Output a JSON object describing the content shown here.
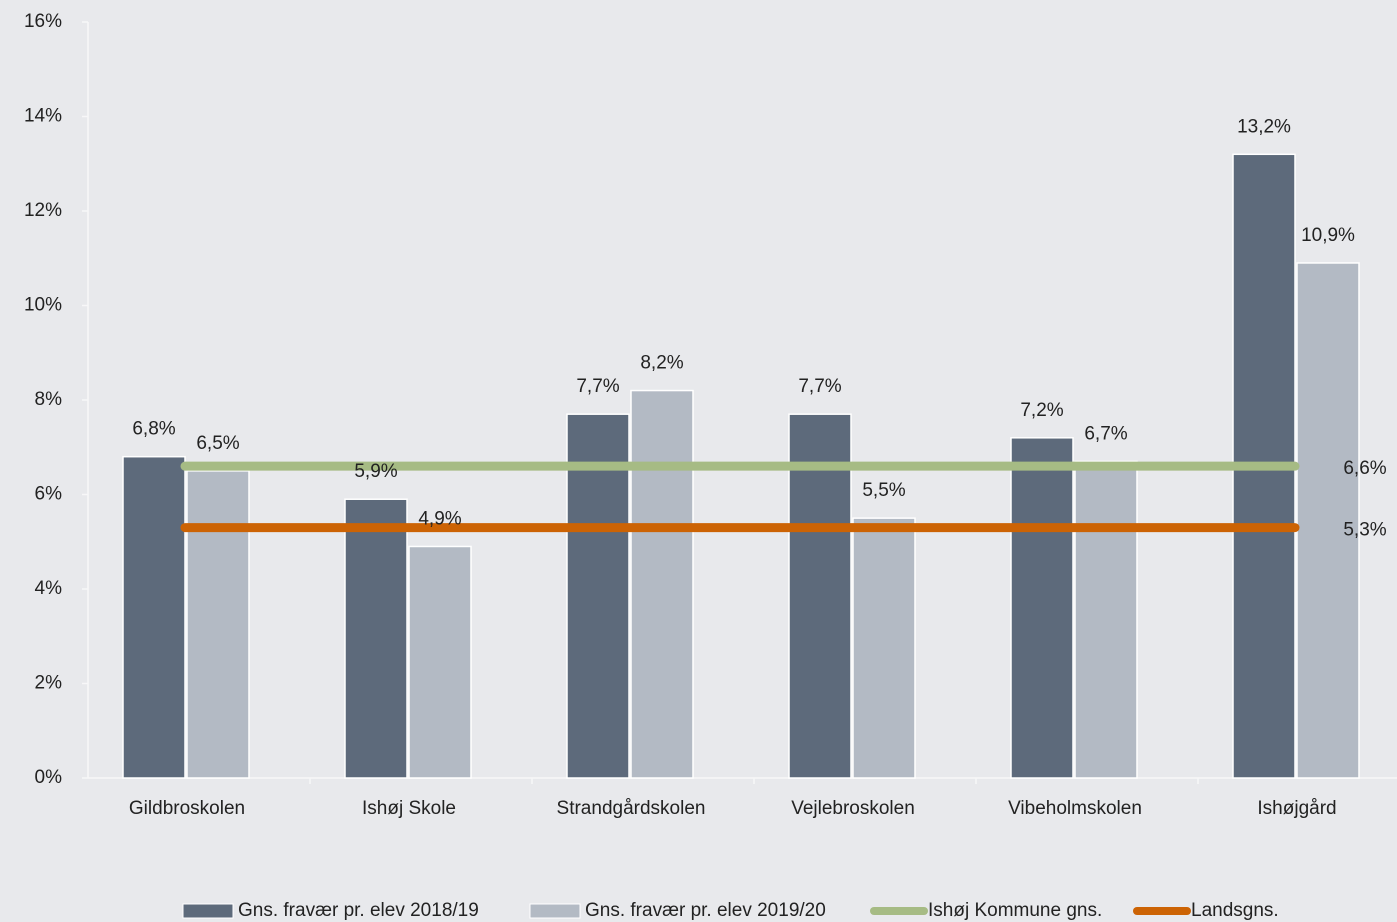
{
  "chart_data": {
    "type": "bar",
    "categories": [
      "Gildbroskolen",
      "Ishøj Skole",
      "Strandgårdskolen",
      "Vejlebroskolen",
      "Vibeholmskolen",
      "Ishøjgård"
    ],
    "series": [
      {
        "name": "Gns. fravær pr. elev 2018/19",
        "color": "#5d6a7b",
        "values": [
          6.8,
          5.9,
          7.7,
          7.7,
          7.2,
          13.2
        ],
        "value_labels": [
          "6,8%",
          "5,9%",
          "7,7%",
          "7,7%",
          "7,2%",
          "13,2%"
        ]
      },
      {
        "name": "Gns. fravær pr. elev 2019/20",
        "color": "#b3bac4",
        "values": [
          6.5,
          4.9,
          8.2,
          5.5,
          6.7,
          10.9
        ],
        "value_labels": [
          "6,5%",
          "4,9%",
          "8,2%",
          "5,5%",
          "6,7%",
          "10,9%"
        ]
      }
    ],
    "lines": [
      {
        "name": "Ishøj Kommune gns.",
        "color": "#a6bb84",
        "value": 6.6,
        "value_label": "6,6%"
      },
      {
        "name": "Landsgns.",
        "color": "#cc6304",
        "value": 5.3,
        "value_label": "5,3%"
      }
    ],
    "ylim": [
      0,
      16
    ],
    "yticks": [
      {
        "value": 0,
        "label": "0%"
      },
      {
        "value": 2,
        "label": "2%"
      },
      {
        "value": 4,
        "label": "4%"
      },
      {
        "value": 6,
        "label": "6%"
      },
      {
        "value": 8,
        "label": "8%"
      },
      {
        "value": 10,
        "label": "10%"
      },
      {
        "value": 12,
        "label": "12%"
      },
      {
        "value": 14,
        "label": "14%"
      },
      {
        "value": 16,
        "label": "16%"
      }
    ],
    "grid": false,
    "legend": "bottom"
  }
}
